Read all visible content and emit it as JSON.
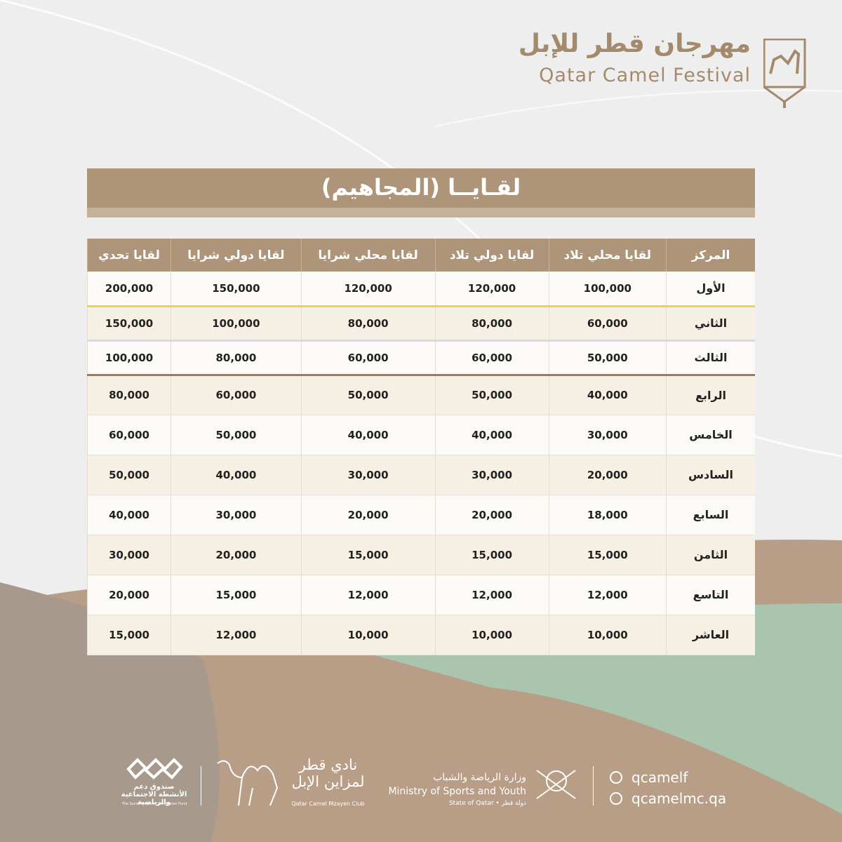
{
  "header": {
    "logo_ar": "مهرجان قطر للإبل",
    "logo_en": "Qatar Camel Festival"
  },
  "table": {
    "title": "لقـايــا (المجاهيم)",
    "columns": [
      "المركز",
      "لقايا محلي تلاد",
      "لقايا دولي تلاد",
      "لقايا محلي شرايا",
      "لقايا دولي شرايا",
      "لقايا تحدي"
    ],
    "rows": [
      [
        "الأول",
        "100,000",
        "120,000",
        "120,000",
        "150,000",
        "200,000"
      ],
      [
        "الثاني",
        "60,000",
        "80,000",
        "80,000",
        "100,000",
        "150,000"
      ],
      [
        "الثالث",
        "50,000",
        "60,000",
        "60,000",
        "80,000",
        "100,000"
      ],
      [
        "الرابع",
        "40,000",
        "50,000",
        "50,000",
        "60,000",
        "80,000"
      ],
      [
        "الخامس",
        "30,000",
        "40,000",
        "40,000",
        "50,000",
        "60,000"
      ],
      [
        "السادس",
        "20,000",
        "30,000",
        "30,000",
        "40,000",
        "50,000"
      ],
      [
        "السابع",
        "18,000",
        "20,000",
        "20,000",
        "30,000",
        "40,000"
      ],
      [
        "الثامن",
        "15,000",
        "15,000",
        "15,000",
        "20,000",
        "30,000"
      ],
      [
        "التاسع",
        "12,000",
        "12,000",
        "12,000",
        "15,000",
        "20,000"
      ],
      [
        "العاشر",
        "10,000",
        "10,000",
        "10,000",
        "12,000",
        "15,000"
      ]
    ]
  },
  "footer": {
    "fund_ar": "صندوق دعم الأنشطة الاجتماعية والرياضية",
    "fund_en": "The Social & Sport Contribution Fund",
    "club_ar": "نادي قطر لمزاين الإبل",
    "club_en": "Qatar Camel Mzayen Club",
    "ministry_ar": "وزارة الرياضة والشباب",
    "ministry_en": "Ministry of Sports and Youth",
    "state": "State of Qatar • دولة قطر",
    "social": "qcamelf",
    "website": "qcamelmc.qa"
  }
}
